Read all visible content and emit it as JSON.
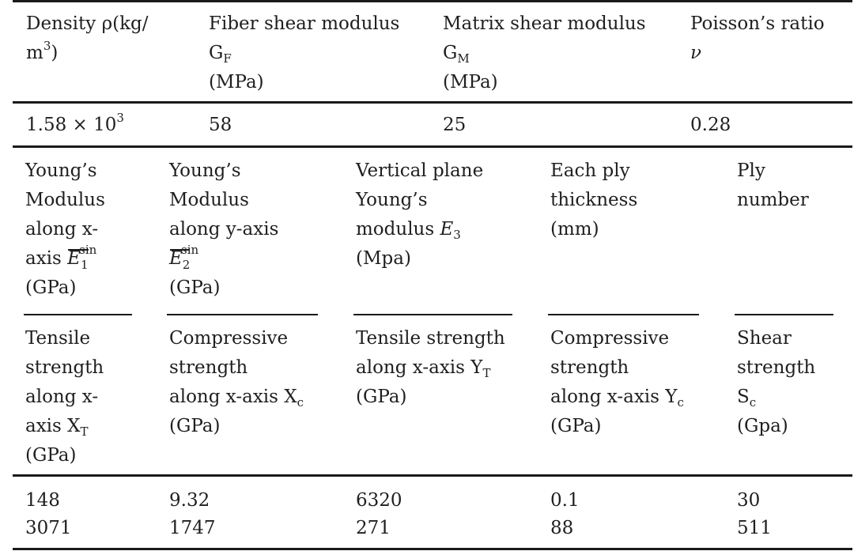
{
  "table1": {
    "headers": [
      {
        "line1": "Density ρ(kg/",
        "line2_base": "m",
        "line2_sup": "3",
        "line2_end": ")"
      },
      {
        "line1": "Fiber shear modulus",
        "sym": "G",
        "sub": "F",
        "unit": "(MPa)"
      },
      {
        "line1": "Matrix shear modulus",
        "sym": "G",
        "sub": "M",
        "unit": "(MPa)"
      },
      {
        "line1": "Poisson’s ratio",
        "sym": "ν"
      }
    ],
    "values": {
      "density_base": "1.58 × 10",
      "density_exp": "3",
      "fiber_shear": "58",
      "matrix_shear": "25",
      "poisson": "0.28"
    }
  },
  "table2": {
    "headers_row1": [
      {
        "lines": [
          "Young’s",
          "Modulus",
          "along x-"
        ],
        "axis_prefix": "axis ",
        "sym": "E",
        "sub": "1",
        "sup": "sin",
        "unit": "(GPa)"
      },
      {
        "lines": [
          "Young’s",
          "Modulus",
          "along y-axis"
        ],
        "sym": "E",
        "sub": "2",
        "sup": "sin",
        "unit": "(GPa)"
      },
      {
        "lines": [
          "Vertical plane",
          "Young’s"
        ],
        "modulus_prefix": "modulus ",
        "sym": "E",
        "sub": "3",
        "unit": "(Mpa)"
      },
      {
        "lines": [
          "Each ply",
          "thickness",
          "(mm)"
        ]
      },
      {
        "lines": [
          "Ply",
          "number"
        ]
      }
    ],
    "headers_row2": [
      {
        "lines": [
          "Tensile",
          "strength",
          "along x-"
        ],
        "sym_prefix": "axis X",
        "sub": "T",
        "unit": "(GPa)"
      },
      {
        "lines": [
          "Compressive",
          "strength"
        ],
        "sym_prefix": "along x-axis X",
        "sub": "c",
        "unit": "(GPa)"
      },
      {
        "lines": [
          "Tensile strength"
        ],
        "sym_prefix": "along x-axis Y",
        "sub": "T",
        "unit": "(GPa)"
      },
      {
        "lines": [
          "Compressive",
          "strength"
        ],
        "sym_prefix": "along x-axis Y",
        "sub": "c",
        "unit": "(GPa)"
      },
      {
        "lines": [
          "Shear",
          "strength"
        ],
        "sym_prefix": "S",
        "sub": "c",
        "unit": "(Gpa)"
      }
    ],
    "data_rows": [
      [
        "148",
        "9.32",
        "6320",
        "0.1",
        "30"
      ],
      [
        "3071",
        "1747",
        "271",
        "88",
        "511"
      ]
    ]
  }
}
